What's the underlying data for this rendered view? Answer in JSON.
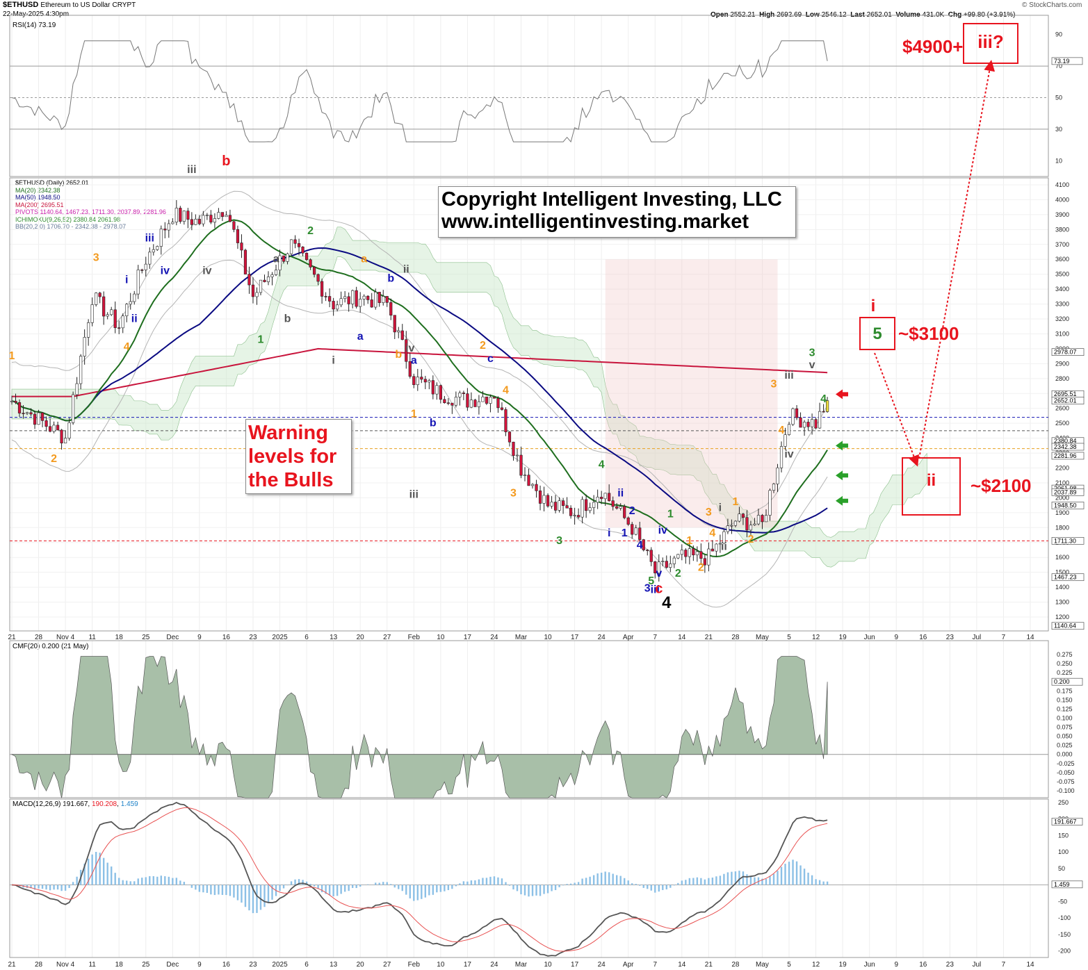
{
  "header": {
    "symbol": "$ETHUSD",
    "name": "Ethereum to US Dollar",
    "exchange": "CRYPT",
    "date": "22-May-2025 4:30pm",
    "brand": "© StockCharts.com",
    "open_label": "Open",
    "open": "2552.21",
    "high_label": "High",
    "high": "2692.69",
    "low_label": "Low",
    "low": "2546.12",
    "last_label": "Last",
    "last": "2652.01",
    "volume_label": "Volume",
    "volume": "431.0K",
    "chg_label": "Chg",
    "chg": "+99.80 (+3.91%)"
  },
  "colors": {
    "red": "#e8141e",
    "orange": "#f39a1e",
    "green": "#2e8b2e",
    "blue": "#1414b4",
    "gray": "#555555",
    "ma20": "#1e6e1e",
    "ma50": "#0a0a82",
    "ma200": "#c8143c",
    "cloud_green": "#c8e6c8",
    "cloud_red": "#f0c8c8"
  },
  "rsi": {
    "title": "RSI(14) 73.19",
    "value_tag": "73.19",
    "ticks": [
      "90",
      "70",
      "50",
      "30",
      "10"
    ]
  },
  "legend": {
    "main": "$ETHUSD (Daily) 2652.01",
    "ma20": "MA(20) 2342.38",
    "ma50": "MA(50) 1948.50",
    "ma200": "MA(200) 2695.51",
    "pivots": "PIVOTS 1140.64, 1467.23, 1711.30, 2037.89, 2281.96",
    "ichimoku": "ICHIMOKU(9,26,52) 2380.84 2061.98",
    "bb": "BB(20,2.0) 1706.70 - 2342.38 - 2978.07"
  },
  "annotations": {
    "copyright_line1": "Copyright Intelligent Investing, LLC",
    "copyright_line2": "www.intelligentinvesting.market",
    "warning_line1": "Warning",
    "warning_line2": "levels for",
    "warning_line3": "the Bulls",
    "target_high": "$4900+",
    "target_high_wave": "iii?",
    "target_mid": "~$3100",
    "target_mid_wave_top": "i",
    "target_mid_wave": "5",
    "target_low": "~$2100",
    "target_low_wave": "ii"
  },
  "chart_data": {
    "type": "line",
    "series": [
      {
        "name": "$ETHUSD (Daily)",
        "x": [
          "Oct 21",
          "Nov 4",
          "Nov 11",
          "Nov 18",
          "Nov 25",
          "Dec 2",
          "Dec 9",
          "Dec 16",
          "Dec 23",
          "Jan 2",
          "Jan 13",
          "Jan 20",
          "Jan 27",
          "Feb 3",
          "Feb 10",
          "Feb 17",
          "Feb 24",
          "Mar 3",
          "Mar 10",
          "Mar 17",
          "Mar 24",
          "Apr 1",
          "Apr 7",
          "Apr 14",
          "Apr 21",
          "Apr 28",
          "May 5",
          "May 12",
          "May 19",
          "May 22"
        ],
        "values": [
          2650,
          2400,
          3350,
          3150,
          3600,
          3900,
          3850,
          3950,
          3350,
          3700,
          3300,
          3350,
          3300,
          2800,
          2700,
          2650,
          2700,
          2200,
          1950,
          1900,
          2050,
          1800,
          1500,
          1600,
          1600,
          1850,
          1820,
          2550,
          2500,
          2652
        ]
      },
      {
        "name": "MA(20)",
        "value": 2342.38
      },
      {
        "name": "MA(50)",
        "value": 1948.5
      },
      {
        "name": "MA(200)",
        "value": 2695.51
      }
    ],
    "ylim": [
      1140,
      4150
    ],
    "price_ticks": [
      "4100",
      "4000",
      "3900",
      "3800",
      "3700",
      "3600",
      "3500",
      "3400",
      "3300",
      "3200",
      "3100",
      "3000",
      "2900",
      "2800",
      "2700",
      "2600",
      "2500",
      "2400",
      "2300",
      "2200",
      "2100",
      "2000",
      "1900",
      "1800",
      "1700",
      "1600",
      "1500",
      "1400",
      "1300",
      "1200"
    ],
    "x_ticks": [
      "21",
      "28",
      "Nov 4",
      "11",
      "18",
      "25",
      "Dec",
      "9",
      "16",
      "23",
      "2025",
      "6",
      "13",
      "20",
      "27",
      "Feb",
      "10",
      "17",
      "24",
      "Mar",
      "10",
      "17",
      "24",
      "Apr",
      "7",
      "14",
      "21",
      "28",
      "May",
      "5",
      "12",
      "19",
      "Jun",
      "9",
      "16",
      "23",
      "Jul",
      "7",
      "14"
    ],
    "price_tags": [
      {
        "text": "2978.07",
        "value": 2978.07
      },
      {
        "text": "2695.51",
        "value": 2695.51
      },
      {
        "text": "2652.01",
        "value": 2652.01
      },
      {
        "text": "2380.84",
        "value": 2380.84
      },
      {
        "text": "2342.38",
        "value": 2342.38
      },
      {
        "text": "2281.96",
        "value": 2281.96
      },
      {
        "text": "2061.98",
        "value": 2061.98
      },
      {
        "text": "2037.89",
        "value": 2037.89
      },
      {
        "text": "1948.50",
        "value": 1948.5
      },
      {
        "text": "1711.30",
        "value": 1711.3
      },
      {
        "text": "1467.23",
        "value": 1467.23
      },
      {
        "text": "1140.64",
        "value": 1140.64
      }
    ],
    "horizontal_levels": [
      {
        "value": 2540,
        "style": "blue-dashed"
      },
      {
        "value": 2450,
        "style": "gray-dashed"
      },
      {
        "value": 2330,
        "style": "orange-dashed"
      },
      {
        "value": 1711.3,
        "style": "red-dashed"
      }
    ],
    "wave_labels": [
      {
        "t": "1",
        "c": "orange",
        "x": "Oct 21",
        "y": 2930
      },
      {
        "t": "2",
        "c": "orange",
        "x": "Nov 1",
        "y": 2240
      },
      {
        "t": "3",
        "c": "orange",
        "x": "Nov 12",
        "y": 3590
      },
      {
        "t": "4",
        "c": "orange",
        "x": "Nov 20",
        "y": 2990
      },
      {
        "t": "i",
        "c": "blue",
        "x": "Nov 20",
        "y": 3440
      },
      {
        "t": "ii",
        "c": "blue",
        "x": "Nov 22",
        "y": 3180
      },
      {
        "t": "iii",
        "c": "blue",
        "x": "Nov 26",
        "y": 3720
      },
      {
        "t": "iv",
        "c": "blue",
        "x": "Nov 30",
        "y": 3500
      },
      {
        "t": "iii",
        "c": "gray",
        "x": "Dec 7",
        "y": 4180
      },
      {
        "t": "b",
        "c": "red",
        "x": "Dec 16",
        "y": 4230
      },
      {
        "t": "iv",
        "c": "gray",
        "x": "Dec 11",
        "y": 3500
      },
      {
        "t": "a",
        "c": "gray",
        "x": "Dec 29",
        "y": 3580
      },
      {
        "t": "b",
        "c": "gray",
        "x": "Jan 1",
        "y": 3180
      },
      {
        "t": "1",
        "c": "green",
        "x": "Dec 25",
        "y": 3040
      },
      {
        "t": "2",
        "c": "green",
        "x": "Jan 7",
        "y": 3770
      },
      {
        "t": "i",
        "c": "gray",
        "x": "Jan 13",
        "y": 2900
      },
      {
        "t": "a",
        "c": "orange",
        "x": "Jan 21",
        "y": 3580
      },
      {
        "t": "a",
        "c": "blue",
        "x": "Jan 20",
        "y": 3060
      },
      {
        "t": "b",
        "c": "blue",
        "x": "Jan 28",
        "y": 3450
      },
      {
        "t": "b",
        "c": "orange",
        "x": "Jan 30",
        "y": 2940
      },
      {
        "t": "ii",
        "c": "gray",
        "x": "Feb 1",
        "y": 3510
      },
      {
        "t": "iv",
        "c": "gray",
        "x": "Feb 2",
        "y": 2980
      },
      {
        "t": "a",
        "c": "blue",
        "x": "Feb 3",
        "y": 2900
      },
      {
        "t": "1",
        "c": "orange",
        "x": "Feb 3",
        "y": 2540
      },
      {
        "t": "iii",
        "c": "gray",
        "x": "Feb 3",
        "y": 2000
      },
      {
        "t": "b",
        "c": "blue",
        "x": "Feb 8",
        "y": 2480
      },
      {
        "t": "2",
        "c": "orange",
        "x": "Feb 21",
        "y": 3000
      },
      {
        "t": "c",
        "c": "blue",
        "x": "Feb 23",
        "y": 2910
      },
      {
        "t": "4",
        "c": "orange",
        "x": "Feb 27",
        "y": 2700
      },
      {
        "t": "3",
        "c": "orange",
        "x": "Mar 1",
        "y": 2010
      },
      {
        "t": "3",
        "c": "green",
        "x": "Mar 13",
        "y": 1690
      },
      {
        "t": "4",
        "c": "green",
        "x": "Mar 24",
        "y": 2200
      },
      {
        "t": "i",
        "c": "blue",
        "x": "Mar 26",
        "y": 1740
      },
      {
        "t": "ii",
        "c": "blue",
        "x": "Mar 29",
        "y": 2010
      },
      {
        "t": "2",
        "c": "blue",
        "x": "Apr 1",
        "y": 1890
      },
      {
        "t": "1",
        "c": "blue",
        "x": "Mar 30",
        "y": 1740
      },
      {
        "t": "4",
        "c": "blue",
        "x": "Apr 3",
        "y": 1660
      },
      {
        "t": "3",
        "c": "blue",
        "x": "Apr 5",
        "y": 1370
      },
      {
        "t": "iii",
        "c": "blue",
        "x": "Apr 7",
        "y": 1360
      },
      {
        "t": "v",
        "c": "blue",
        "x": "Apr 8",
        "y": 1470
      },
      {
        "t": "iv",
        "c": "blue",
        "x": "Apr 9",
        "y": 1760
      },
      {
        "t": "5",
        "c": "green",
        "x": "Apr 6",
        "y": 1420
      },
      {
        "t": "c",
        "c": "red",
        "x": "Apr 8",
        "y": 1360
      },
      {
        "t": "4",
        "c": "black",
        "x": "Apr 10",
        "y": 1260
      },
      {
        "t": "1",
        "c": "green",
        "x": "Apr 11",
        "y": 1870
      },
      {
        "t": "2",
        "c": "green",
        "x": "Apr 13",
        "y": 1470
      },
      {
        "t": "1",
        "c": "orange",
        "x": "Apr 16",
        "y": 1690
      },
      {
        "t": "2",
        "c": "orange",
        "x": "Apr 19",
        "y": 1510
      },
      {
        "t": "3",
        "c": "orange",
        "x": "Apr 21",
        "y": 1880
      },
      {
        "t": "4",
        "c": "orange",
        "x": "Apr 22",
        "y": 1740
      },
      {
        "t": "i",
        "c": "gray",
        "x": "Apr 24",
        "y": 1910
      },
      {
        "t": "1",
        "c": "orange",
        "x": "Apr 28",
        "y": 1950
      },
      {
        "t": "ii",
        "c": "gray",
        "x": "Apr 25",
        "y": 1650
      },
      {
        "t": "2",
        "c": "orange",
        "x": "May 2",
        "y": 1700
      },
      {
        "t": "3",
        "c": "orange",
        "x": "May 8",
        "y": 2740
      },
      {
        "t": "4",
        "c": "orange",
        "x": "May 10",
        "y": 2430
      },
      {
        "t": "iii",
        "c": "gray",
        "x": "May 12",
        "y": 2800
      },
      {
        "t": "iv",
        "c": "gray",
        "x": "May 12",
        "y": 2270
      },
      {
        "t": "v",
        "c": "gray",
        "x": "May 18",
        "y": 2870
      },
      {
        "t": "3",
        "c": "green",
        "x": "May 18",
        "y": 2950
      },
      {
        "t": "4",
        "c": "green",
        "x": "May 21",
        "y": 2640
      }
    ]
  },
  "cmf": {
    "title": "CMF(20) 0.200 (21 May)",
    "value_tag": "0.200",
    "ticks": [
      "0.275",
      "0.250",
      "0.225",
      "0.200",
      "0.175",
      "0.150",
      "0.125",
      "0.100",
      "0.075",
      "0.050",
      "0.025",
      "0.000",
      "-0.025",
      "-0.050",
      "-0.075",
      "-0.100"
    ]
  },
  "macd": {
    "title_label": "MACD(12,26,9)",
    "macd_value": "191.667",
    "signal_value": "190.208",
    "hist_value": "1.459",
    "value_tag_macd": "191.667",
    "value_tag_hist": "1.459",
    "ticks": [
      "250",
      "200",
      "150",
      "100",
      "50",
      "0",
      "-50",
      "-100",
      "-150",
      "-200"
    ]
  }
}
